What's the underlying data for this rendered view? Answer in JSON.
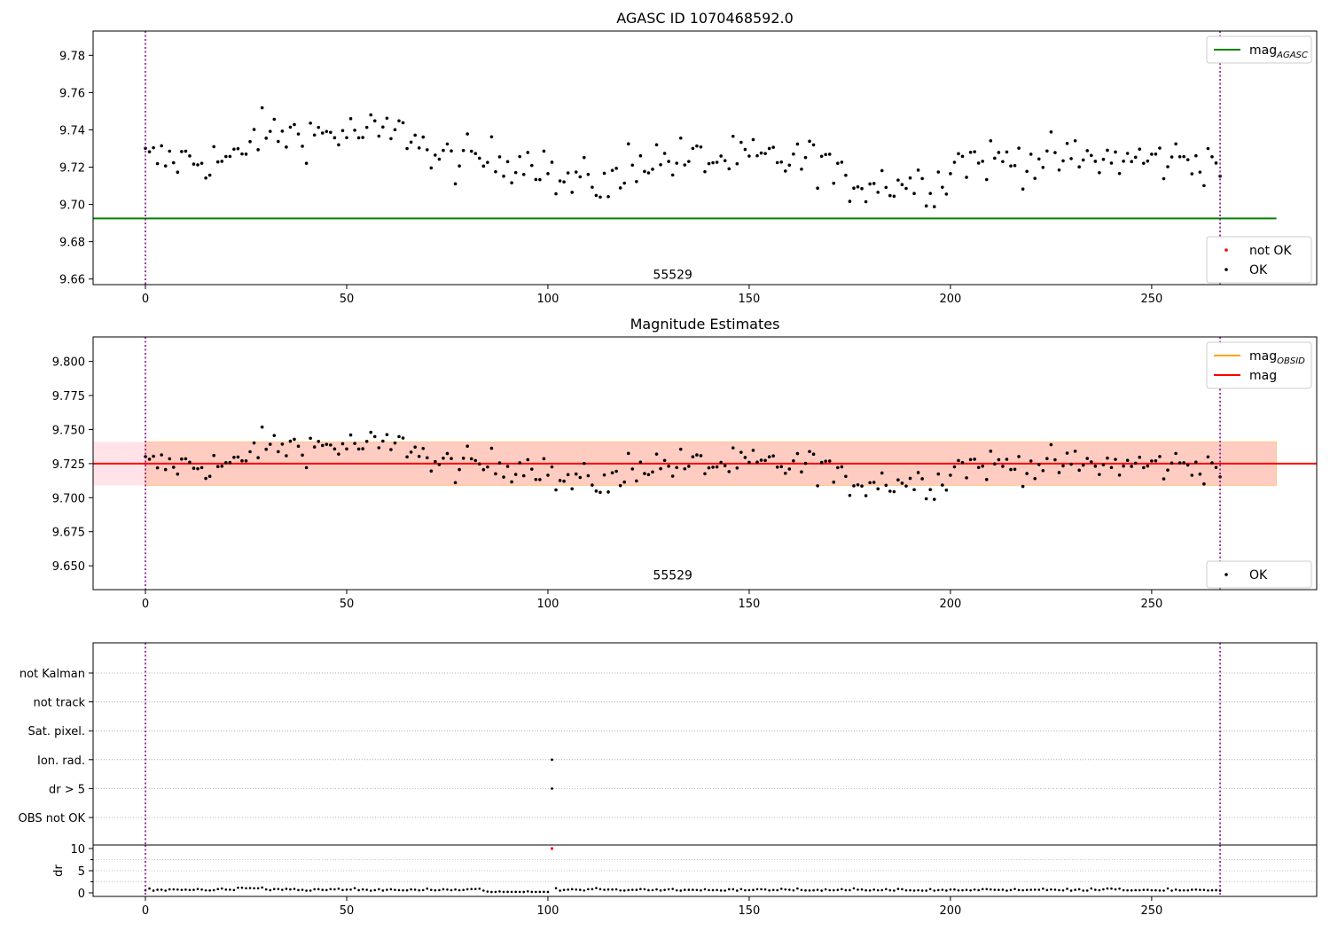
{
  "chart_data": [
    {
      "type": "scatter",
      "title": "AGASC ID 1070468592.0",
      "xlim": [
        -13,
        291
      ],
      "ylim": [
        9.657,
        9.793
      ],
      "xticks": [
        0,
        50,
        100,
        150,
        200,
        250,
        300
      ],
      "yticks": [
        9.66,
        9.68,
        9.7,
        9.72,
        9.74,
        9.76,
        9.78
      ],
      "ytick_labels": [
        "9.66",
        "9.68",
        "9.70",
        "9.72",
        "9.74",
        "9.76",
        "9.78"
      ],
      "vlines": [
        0,
        267
      ],
      "vline_color": "#800080",
      "hline": {
        "y": 9.6925,
        "x_range": [
          -13,
          281
        ],
        "color": "#008000",
        "name": "mag_AGASC"
      },
      "annotation": {
        "text": "55529",
        "x": 131,
        "y": 9.66
      },
      "legend_top": [
        {
          "label": "mag",
          "sub": "AGASC",
          "color": "#008000",
          "kind": "line"
        }
      ],
      "legend_bottom": [
        {
          "label": "not OK",
          "color": "#ff0000",
          "kind": "dot"
        },
        {
          "label": "OK",
          "color": "#000000",
          "kind": "dot"
        }
      ],
      "series": [
        {
          "name": "OK",
          "color": "#000000",
          "x_start": 0,
          "x_end": 267
        }
      ]
    },
    {
      "type": "scatter",
      "title": "Magnitude Estimates",
      "xlim": [
        -13,
        291
      ],
      "ylim": [
        9.6325,
        9.818
      ],
      "xticks": [
        0,
        50,
        100,
        150,
        200,
        250,
        300
      ],
      "yticks": [
        9.65,
        9.675,
        9.7,
        9.725,
        9.75,
        9.775,
        9.8
      ],
      "ytick_labels": [
        "9.650",
        "9.675",
        "9.700",
        "9.725",
        "9.750",
        "9.775",
        "9.800"
      ],
      "vlines": [
        0,
        267
      ],
      "vline_color": "#800080",
      "hline": {
        "y": 9.725,
        "x_range": [
          -13,
          291
        ],
        "color": "#ff0000",
        "name": "mag"
      },
      "band_outer": {
        "y0": 9.709,
        "y1": 9.741,
        "x_range": [
          -13,
          281
        ],
        "color": "#ffc0cb"
      },
      "band_inner": {
        "y0": 9.709,
        "y1": 9.741,
        "x_range": [
          0,
          281
        ],
        "color": "#ffa07a"
      },
      "annotation": {
        "text": "55529",
        "x": 131,
        "y": 9.64
      },
      "legend_top": [
        {
          "label": "mag",
          "sub": "OBSID",
          "color": "#ffa500",
          "kind": "line"
        },
        {
          "label": "mag",
          "sub": "",
          "color": "#ff0000",
          "kind": "line"
        }
      ],
      "legend_bottom": [
        {
          "label": "OK",
          "color": "#000000",
          "kind": "dot"
        }
      ],
      "series": [
        {
          "name": "OK",
          "color": "#000000",
          "x_start": 0,
          "x_end": 267
        }
      ]
    },
    {
      "type": "scatter",
      "xlim": [
        -13,
        291
      ],
      "categories": [
        "not Kalman",
        "not track",
        "Sat. pixel.",
        "Ion. rad.",
        "dr > 5",
        "OBS not OK"
      ],
      "flags": [
        {
          "category": "Ion. rad.",
          "x": 101
        },
        {
          "category": "dr > 5",
          "x": 101
        }
      ],
      "vlines": [
        0,
        267
      ],
      "vline_color": "#800080"
    },
    {
      "type": "scatter",
      "xlim": [
        -13,
        291
      ],
      "ylim": [
        -0.8,
        10.8
      ],
      "yticks": [
        0,
        5,
        10
      ],
      "ytick_labels": [
        "0",
        "5",
        "10"
      ],
      "xticks": [
        0,
        50,
        100,
        150,
        200,
        250,
        300
      ],
      "ylabel": "dr",
      "outlier": {
        "x": 101,
        "y": 10,
        "color": "#ff0000"
      },
      "vlines": [
        0,
        267
      ],
      "vline_color": "#800080",
      "series": [
        {
          "name": "dr",
          "color": "#000000",
          "x_start": 0,
          "x_end": 267
        }
      ]
    }
  ]
}
